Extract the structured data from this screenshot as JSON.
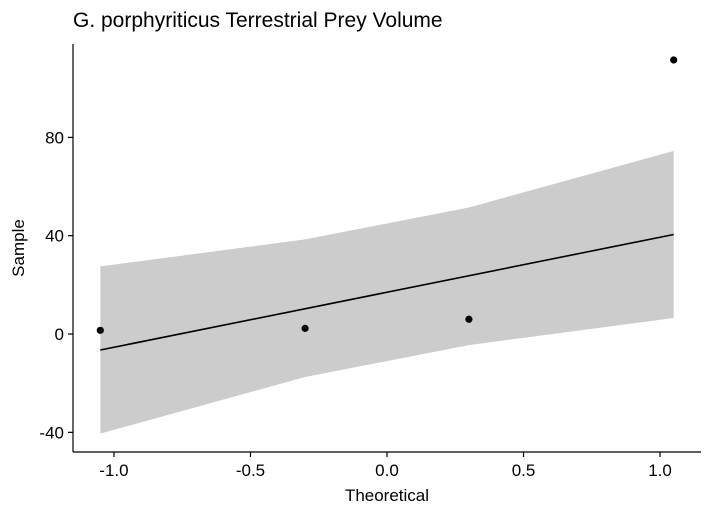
{
  "chart_data": {
    "type": "scatter",
    "title": "G. porphyriticus Terrestrial Prey Volume",
    "xlabel": "Theoretical",
    "ylabel": "Sample",
    "xlim": [
      -1.15,
      1.15
    ],
    "ylim": [
      -48,
      118
    ],
    "x_ticks": [
      -1.0,
      -0.5,
      0.0,
      0.5,
      1.0
    ],
    "x_tick_labels": [
      "-1.0",
      "-0.5",
      "0.0",
      "0.5",
      "1.0"
    ],
    "y_ticks": [
      -40,
      0,
      40,
      80
    ],
    "y_tick_labels": [
      "-40",
      "0",
      "40",
      "80"
    ],
    "grid": false,
    "legend": "none",
    "points": [
      {
        "x": -1.05,
        "y": 1.5
      },
      {
        "x": -0.3,
        "y": 2.3
      },
      {
        "x": 0.3,
        "y": 6.0
      },
      {
        "x": 1.05,
        "y": 111.5
      }
    ],
    "reference_line": {
      "x": [
        -1.05,
        1.05
      ],
      "y": [
        -6.5,
        40.5
      ]
    },
    "confidence_band": {
      "x": [
        -1.05,
        -0.3,
        0.3,
        1.05
      ],
      "upper": [
        27.5,
        38.5,
        51.5,
        74.5
      ],
      "lower": [
        -40.5,
        -17.5,
        -4.5,
        6.5
      ]
    },
    "colors": {
      "points": "#000000",
      "line": "#000000",
      "band": "#cccccc",
      "axis": "#000000"
    }
  }
}
